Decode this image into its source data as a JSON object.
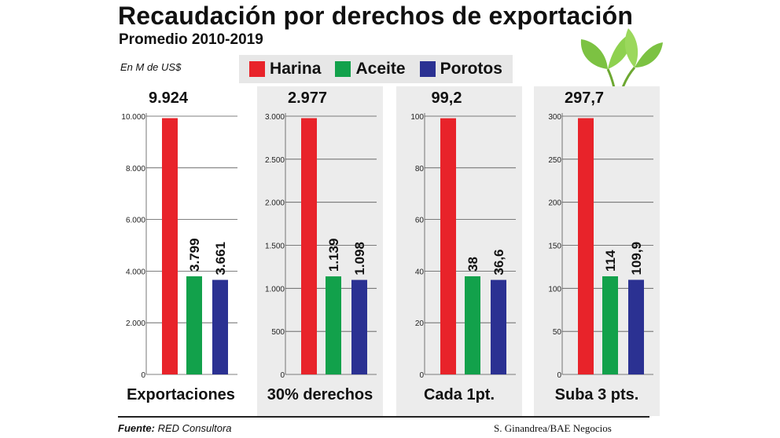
{
  "title": "Recaudación por derechos de exportación",
  "subtitle": "Promedio 2010-2019",
  "unit_label": "En M de US$",
  "legend": [
    {
      "label": "Harina",
      "color": "#e8232a"
    },
    {
      "label": "Aceite",
      "color": "#12a14b"
    },
    {
      "label": "Porotos",
      "color": "#2b3192"
    }
  ],
  "chart_data": [
    {
      "type": "bar",
      "label": "Exportaciones",
      "categories": [
        "Harina",
        "Aceite",
        "Porotos"
      ],
      "values": [
        9924,
        3799,
        3661
      ],
      "value_labels": [
        "9.924",
        "3.799",
        "3.661"
      ],
      "ylim": [
        0,
        10000
      ],
      "yticks": [
        0,
        2000,
        4000,
        6000,
        8000,
        10000
      ],
      "ytick_labels": [
        "0",
        "2.000",
        "4.000",
        "6.000",
        "8.000",
        "10.000"
      ],
      "grid": true,
      "shaded": false
    },
    {
      "type": "bar",
      "label": "30% derechos",
      "categories": [
        "Harina",
        "Aceite",
        "Porotos"
      ],
      "values": [
        2977,
        1139,
        1098
      ],
      "value_labels": [
        "2.977",
        "1.139",
        "1.098"
      ],
      "ylim": [
        0,
        3000
      ],
      "yticks": [
        0,
        500,
        1000,
        1500,
        2000,
        2500,
        3000
      ],
      "ytick_labels": [
        "0",
        "500",
        "1.000",
        "1.500",
        "2.000",
        "2.500",
        "3.000"
      ],
      "grid": true,
      "shaded": true
    },
    {
      "type": "bar",
      "label": "Cada 1pt.",
      "categories": [
        "Harina",
        "Aceite",
        "Porotos"
      ],
      "values": [
        99.2,
        38,
        36.6
      ],
      "value_labels": [
        "99,2",
        "38",
        "36,6"
      ],
      "ylim": [
        0,
        100
      ],
      "yticks": [
        0,
        20,
        40,
        60,
        80,
        100
      ],
      "ytick_labels": [
        "0",
        "20",
        "40",
        "60",
        "80",
        "100"
      ],
      "grid": true,
      "shaded": true
    },
    {
      "type": "bar",
      "label": "Suba 3 pts.",
      "categories": [
        "Harina",
        "Aceite",
        "Porotos"
      ],
      "values": [
        297.7,
        114,
        109.9
      ],
      "value_labels": [
        "297,7",
        "114",
        "109,9"
      ],
      "ylim": [
        0,
        300
      ],
      "yticks": [
        0,
        50,
        100,
        150,
        200,
        250,
        300
      ],
      "ytick_labels": [
        "0",
        "50",
        "100",
        "150",
        "200",
        "250",
        "300"
      ],
      "grid": true,
      "shaded": true
    }
  ],
  "footer": {
    "source_label": "Fuente:",
    "source_value": "RED Consultora",
    "credit": "S. Ginandrea/BAE Negocios"
  }
}
